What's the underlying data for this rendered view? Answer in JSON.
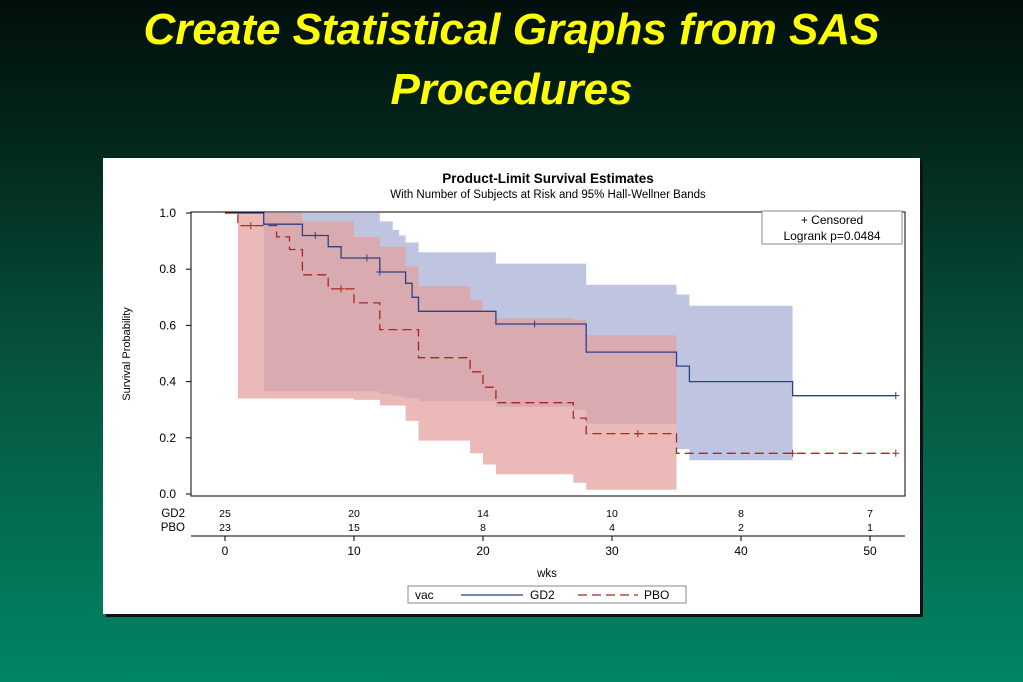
{
  "slide": {
    "title_line1": "Create Statistical Graphs from SAS",
    "title_line2": "Procedures"
  },
  "chart_data": {
    "type": "line",
    "title": "Product-Limit Survival Estimates",
    "subtitle": "With Number of Subjects at Risk and 95% Hall-Wellner Bands",
    "xlabel": "wks",
    "ylabel": "Survival Probability",
    "xlim": [
      0,
      52
    ],
    "ylim": [
      0,
      1.0
    ],
    "xticks": [
      0,
      10,
      20,
      30,
      40,
      50
    ],
    "yticks": [
      0.0,
      0.2,
      0.4,
      0.6,
      0.8,
      1.0
    ],
    "ytick_labels": [
      "0.0",
      "0.2",
      "0.4",
      "0.6",
      "0.8",
      "1.0"
    ],
    "inset": {
      "censored": "+ Censored",
      "logrank": "Logrank p=0.0484"
    },
    "legend": {
      "position": "bottom",
      "title": "vac",
      "entries": [
        "GD2",
        "PBO"
      ]
    },
    "at_risk": {
      "times": [
        0,
        10,
        20,
        30,
        40,
        50
      ],
      "rows": [
        {
          "label": "GD2",
          "values": [
            "25",
            "20",
            "14",
            "10",
            "8",
            "7"
          ]
        },
        {
          "label": "PBO",
          "values": [
            "23",
            "15",
            "8",
            "4",
            "2",
            "1"
          ]
        }
      ]
    },
    "series": [
      {
        "name": "GD2",
        "color": "#2b3f8c",
        "band_color": "#a6aed4",
        "dash": "solid",
        "step": [
          [
            0,
            1.0
          ],
          [
            3,
            1.0
          ],
          [
            3,
            0.96
          ],
          [
            6,
            0.96
          ],
          [
            6,
            0.92
          ],
          [
            8,
            0.92
          ],
          [
            8,
            0.88
          ],
          [
            9,
            0.88
          ],
          [
            9,
            0.84
          ],
          [
            12,
            0.84
          ],
          [
            12,
            0.79
          ],
          [
            14,
            0.79
          ],
          [
            14,
            0.75
          ],
          [
            14.5,
            0.75
          ],
          [
            14.5,
            0.7
          ],
          [
            15,
            0.7
          ],
          [
            15,
            0.65
          ],
          [
            21,
            0.65
          ],
          [
            21,
            0.605
          ],
          [
            28,
            0.605
          ],
          [
            28,
            0.505
          ],
          [
            35,
            0.505
          ],
          [
            35,
            0.455
          ],
          [
            36,
            0.455
          ],
          [
            36,
            0.4
          ],
          [
            44,
            0.4
          ],
          [
            44,
            0.35
          ],
          [
            52,
            0.35
          ]
        ],
        "censored": [
          [
            7,
            0.92
          ],
          [
            11,
            0.84
          ],
          [
            12,
            0.79
          ],
          [
            24,
            0.605
          ],
          [
            52,
            0.35
          ]
        ],
        "band": {
          "x": [
            3,
            9,
            12,
            13,
            13.5,
            14,
            15,
            21,
            27,
            28,
            35,
            36,
            44
          ],
          "upper": [
            1.0,
            1.0,
            0.97,
            0.94,
            0.92,
            0.895,
            0.86,
            0.82,
            0.82,
            0.745,
            0.71,
            0.67,
            0.67
          ],
          "lower": [
            0.365,
            0.365,
            0.355,
            0.35,
            0.345,
            0.34,
            0.33,
            0.31,
            0.3,
            0.25,
            0.16,
            0.12,
            0.12
          ]
        }
      },
      {
        "name": "PBO",
        "color": "#a8281e",
        "band_color": "#e3a09c",
        "dash": "dashed",
        "step": [
          [
            0,
            1.0
          ],
          [
            1,
            1.0
          ],
          [
            1,
            0.955
          ],
          [
            4,
            0.955
          ],
          [
            4,
            0.915
          ],
          [
            5,
            0.915
          ],
          [
            5,
            0.87
          ],
          [
            6,
            0.87
          ],
          [
            6,
            0.78
          ],
          [
            8,
            0.78
          ],
          [
            8,
            0.73
          ],
          [
            10,
            0.73
          ],
          [
            10,
            0.68
          ],
          [
            12,
            0.68
          ],
          [
            12,
            0.585
          ],
          [
            15,
            0.585
          ],
          [
            15,
            0.485
          ],
          [
            19,
            0.485
          ],
          [
            19,
            0.435
          ],
          [
            20,
            0.435
          ],
          [
            20,
            0.38
          ],
          [
            21,
            0.38
          ],
          [
            21,
            0.325
          ],
          [
            27,
            0.325
          ],
          [
            27,
            0.27
          ],
          [
            28,
            0.27
          ],
          [
            28,
            0.215
          ],
          [
            35,
            0.215
          ],
          [
            35,
            0.145
          ],
          [
            52,
            0.145
          ]
        ],
        "censored": [
          [
            2,
            0.955
          ],
          [
            9,
            0.73
          ],
          [
            32,
            0.215
          ],
          [
            44,
            0.145
          ],
          [
            52,
            0.145
          ]
        ],
        "band": {
          "x": [
            1,
            3,
            6,
            10,
            12,
            14,
            15,
            19,
            20,
            21,
            27,
            28,
            35
          ],
          "upper": [
            1.0,
            1.0,
            0.97,
            0.915,
            0.88,
            0.81,
            0.74,
            0.69,
            0.65,
            0.625,
            0.62,
            0.565,
            0.565
          ],
          "lower": [
            0.34,
            0.34,
            0.34,
            0.335,
            0.315,
            0.26,
            0.19,
            0.145,
            0.105,
            0.07,
            0.04,
            0.015,
            0.015
          ]
        }
      }
    ]
  }
}
